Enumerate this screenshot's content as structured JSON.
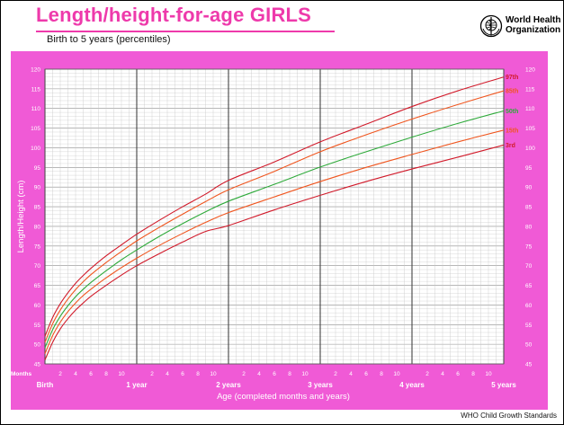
{
  "page": {
    "title": "Length/height-for-age GIRLS",
    "subtitle": "Birth to 5 years (percentiles)",
    "organization_line1": "World Health",
    "organization_line2": "Organization",
    "footer": "WHO Child Growth Standards",
    "logo_icon": "who-emblem-icon",
    "colors": {
      "title": "#ee3aab",
      "panel": "#f05ad6",
      "grid_bg": "#ffffff"
    }
  },
  "chart_data": {
    "type": "line",
    "title": "Length/height-for-age GIRLS",
    "subtitle": "Birth to 5 years (percentiles)",
    "xlabel": "Age (completed months and years)",
    "ylabel": "Length/Height (cm)",
    "xlim": [
      0,
      60
    ],
    "ylim": [
      45,
      120
    ],
    "grid": true,
    "x": [
      0,
      1,
      2,
      3,
      4,
      5,
      6,
      8,
      10,
      12,
      15,
      18,
      21,
      24,
      30,
      36,
      42,
      48,
      54,
      60
    ],
    "y_ticks": [
      45,
      50,
      55,
      60,
      65,
      70,
      75,
      80,
      85,
      90,
      95,
      100,
      105,
      110,
      115,
      120
    ],
    "x_month_ticks": [
      {
        "x": 2,
        "label": "2"
      },
      {
        "x": 4,
        "label": "4"
      },
      {
        "x": 6,
        "label": "6"
      },
      {
        "x": 8,
        "label": "8"
      },
      {
        "x": 10,
        "label": "10"
      },
      {
        "x": 14,
        "label": "2"
      },
      {
        "x": 16,
        "label": "4"
      },
      {
        "x": 18,
        "label": "6"
      },
      {
        "x": 20,
        "label": "8"
      },
      {
        "x": 22,
        "label": "10"
      },
      {
        "x": 26,
        "label": "2"
      },
      {
        "x": 28,
        "label": "4"
      },
      {
        "x": 30,
        "label": "6"
      },
      {
        "x": 32,
        "label": "8"
      },
      {
        "x": 34,
        "label": "10"
      },
      {
        "x": 38,
        "label": "2"
      },
      {
        "x": 40,
        "label": "4"
      },
      {
        "x": 42,
        "label": "6"
      },
      {
        "x": 44,
        "label": "8"
      },
      {
        "x": 46,
        "label": "10"
      },
      {
        "x": 50,
        "label": "2"
      },
      {
        "x": 52,
        "label": "4"
      },
      {
        "x": 54,
        "label": "6"
      },
      {
        "x": 56,
        "label": "8"
      },
      {
        "x": 58,
        "label": "10"
      }
    ],
    "x_year_ticks": [
      {
        "x": 0,
        "label": "Birth"
      },
      {
        "x": 12,
        "label": "1 year"
      },
      {
        "x": 24,
        "label": "2 years"
      },
      {
        "x": 36,
        "label": "3 years"
      },
      {
        "x": 48,
        "label": "4 years"
      },
      {
        "x": 60,
        "label": "5 years"
      }
    ],
    "months_label": "Months",
    "series": [
      {
        "name": "97th",
        "color": "#d11a2a",
        "values": [
          52.0,
          56.8,
          60.3,
          63.1,
          65.5,
          67.5,
          69.3,
          72.5,
          75.3,
          78.0,
          81.6,
          85.0,
          88.2,
          91.7,
          96.4,
          101.5,
          106.0,
          110.5,
          114.5,
          118.0
        ]
      },
      {
        "name": "85th",
        "color": "#f0551e",
        "values": [
          50.5,
          55.2,
          58.7,
          61.5,
          63.9,
          65.9,
          67.7,
          70.8,
          73.6,
          76.3,
          79.8,
          83.1,
          86.3,
          89.3,
          94.0,
          99.0,
          103.3,
          107.3,
          111.0,
          114.5
        ]
      },
      {
        "name": "50th",
        "color": "#2eaa3a",
        "values": [
          49.1,
          53.7,
          57.1,
          59.8,
          62.1,
          64.0,
          65.7,
          68.7,
          71.5,
          74.0,
          77.5,
          80.7,
          83.7,
          86.4,
          90.7,
          95.1,
          99.0,
          102.7,
          106.2,
          109.4
        ]
      },
      {
        "name": "15th",
        "color": "#f0551e",
        "values": [
          47.6,
          52.2,
          55.6,
          58.3,
          60.5,
          62.4,
          64.0,
          66.9,
          69.5,
          71.9,
          75.2,
          78.2,
          81.0,
          83.5,
          87.5,
          91.4,
          95.0,
          98.3,
          101.5,
          104.5
        ]
      },
      {
        "name": "3rd",
        "color": "#d11a2a",
        "values": [
          46.0,
          50.5,
          53.9,
          56.5,
          58.7,
          60.5,
          62.2,
          65.0,
          67.6,
          70.0,
          73.1,
          76.0,
          78.7,
          80.2,
          84.2,
          87.9,
          91.4,
          94.6,
          97.6,
          100.7
        ]
      }
    ]
  }
}
